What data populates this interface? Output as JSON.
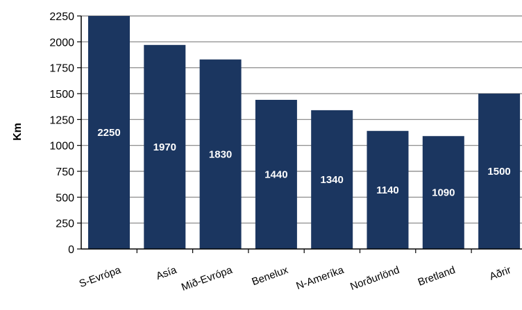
{
  "chart_data": {
    "type": "bar",
    "categories": [
      "S-Evrópa",
      "Asía",
      "Mið-Evrópa",
      "Benelux",
      "N-Ameríka",
      "Norðurlönd",
      "Bretland",
      "Aðrir"
    ],
    "values": [
      2250,
      1970,
      1830,
      1440,
      1340,
      1140,
      1090,
      1500
    ],
    "data_labels": [
      "2250",
      "1970",
      "1830",
      "1440",
      "1340",
      "1140",
      "1090",
      "1500"
    ],
    "title": "",
    "xlabel": "",
    "ylabel": "Km",
    "ylim": [
      0,
      2250
    ],
    "yticks": [
      0,
      250,
      500,
      750,
      1000,
      1250,
      1500,
      1750,
      2000,
      2250
    ],
    "grid": true,
    "legend": "none",
    "colors": {
      "bar": "#1b3660",
      "grid": "#808080",
      "axis": "#000000",
      "label": "#ffffff"
    }
  }
}
